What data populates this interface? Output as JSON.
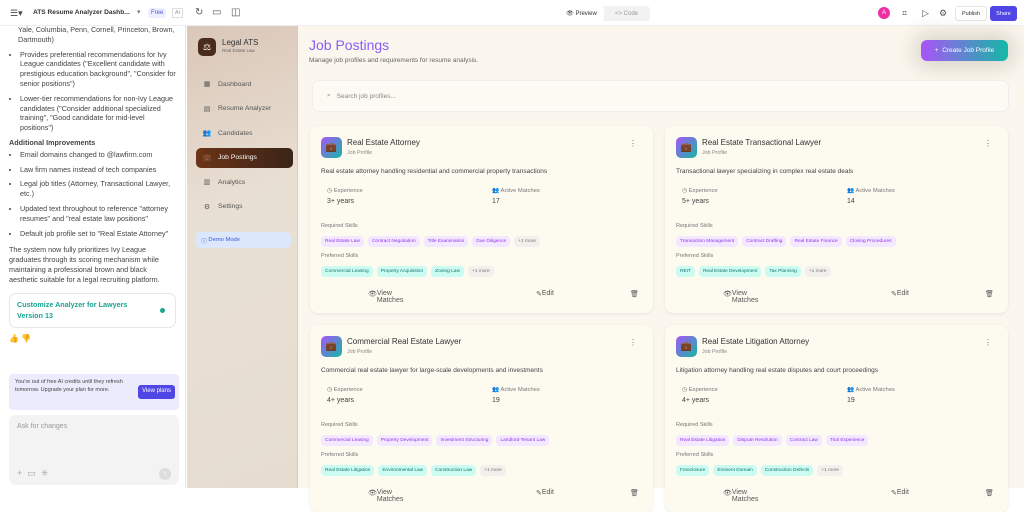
{
  "topbar": {
    "project_title": "ATS Resume Analyzer Dashb...",
    "plan_badge": "Free",
    "ai_badge": "AI",
    "preview": "Preview",
    "code": "Code",
    "avatar": "A",
    "publish": "Publish",
    "share": "Share"
  },
  "chat": {
    "intro_fragment": "Yale, Columbia, Penn, Cornell, Princeton, Brown, Dartmouth)",
    "bullets1": [
      "Provides preferential recommendations for Ivy League candidates (\"Excellent candidate with prestigious education background\", \"Consider for senior positions\")",
      "Lower-tier recommendations for non-Ivy League candidates (\"Consider additional specialized training\", \"Good candidate for mid-level positions\")"
    ],
    "section": "Additional Improvements",
    "bullets2": [
      "Email domains changed to @lawfirm.com",
      "Law firm names instead of tech companies",
      "Legal job titles (Attorney, Transactional Lawyer, etc.)",
      "Updated text throughout to reference \"attorney resumes\" and \"real estate law positions\"",
      "Default job profile set to \"Real Estate Attorney\""
    ],
    "summary": "The system now fully prioritizes Ivy League graduates through its scoring mechanism while maintaining a professional brown and black aesthetic suitable for a legal recruiting platform.",
    "version_title": "Customize Analyzer for Lawyers",
    "version_label": "Version 13",
    "credits_text": "You're out of free AI credits until they refresh tomorrow. Upgrade your plan for more.",
    "view_plans": "View plans",
    "input_placeholder": "Ask for changes"
  },
  "app": {
    "brand": "Legal ATS",
    "brand_sub": "Real Estate Law",
    "nav": [
      {
        "label": "Dashboard",
        "icon": "dashboard-icon"
      },
      {
        "label": "Resume Analyzer",
        "icon": "file-icon"
      },
      {
        "label": "Candidates",
        "icon": "users-icon"
      },
      {
        "label": "Job Postings",
        "icon": "briefcase-icon",
        "active": true
      },
      {
        "label": "Analytics",
        "icon": "chart-icon"
      },
      {
        "label": "Settings",
        "icon": "gear-icon"
      }
    ],
    "demo": "Demo Mode",
    "title": "Job Postings",
    "subtitle": "Manage job profiles and requirements for resume analysis.",
    "create": "Create Job Profile",
    "search_placeholder": "Search job profiles...",
    "labels": {
      "job_profile": "Job Profile",
      "experience": "Experience",
      "active_matches": "Active Matches",
      "required": "Required Skills",
      "preferred": "Preferred Skills",
      "view": "View Matches",
      "edit": "Edit"
    },
    "cards": [
      {
        "title": "Real Estate Attorney",
        "desc": "Real estate attorney handling residential and commercial property transactions",
        "experience": "3+ years",
        "matches": "17",
        "required": [
          "Real Estate Law",
          "Contract Negotiation",
          "Title Examination",
          "Due Diligence",
          "+1 more"
        ],
        "preferred": [
          "Commercial Leasing",
          "Property Acquisition",
          "Zoning Law",
          "+1 more"
        ]
      },
      {
        "title": "Real Estate Transactional Lawyer",
        "desc": "Transactional lawyer specializing in complex real estate deals",
        "experience": "5+ years",
        "matches": "14",
        "required": [
          "Transaction Management",
          "Contract Drafting",
          "Real Estate Finance",
          "Closing Procedures"
        ],
        "preferred": [
          "REIT",
          "Real Estate Development",
          "Tax Planning",
          "+1 more"
        ]
      },
      {
        "title": "Commercial Real Estate Lawyer",
        "desc": "Commercial real estate lawyer for large-scale developments and investments",
        "experience": "4+ years",
        "matches": "19",
        "required": [
          "Commercial Leasing",
          "Property Development",
          "Investment Structuring",
          "Landlord-Tenant Law"
        ],
        "preferred": [
          "Real Estate Litigation",
          "Environmental Law",
          "Construction Law",
          "+1 more"
        ]
      },
      {
        "title": "Real Estate Litigation Attorney",
        "desc": "Litigation attorney handling real estate disputes and court proceedings",
        "experience": "4+ years",
        "matches": "19",
        "required": [
          "Real Estate Litigation",
          "Dispute Resolution",
          "Contract Law",
          "Trial Experience"
        ],
        "preferred": [
          "Foreclosure",
          "Eminent Domain",
          "Construction Defects",
          "+1 more"
        ]
      }
    ]
  },
  "colors": {
    "accent": "#8a5cf6",
    "teal": "#14b8a6",
    "brown": "#6b3416",
    "share": "#4f46e5"
  }
}
